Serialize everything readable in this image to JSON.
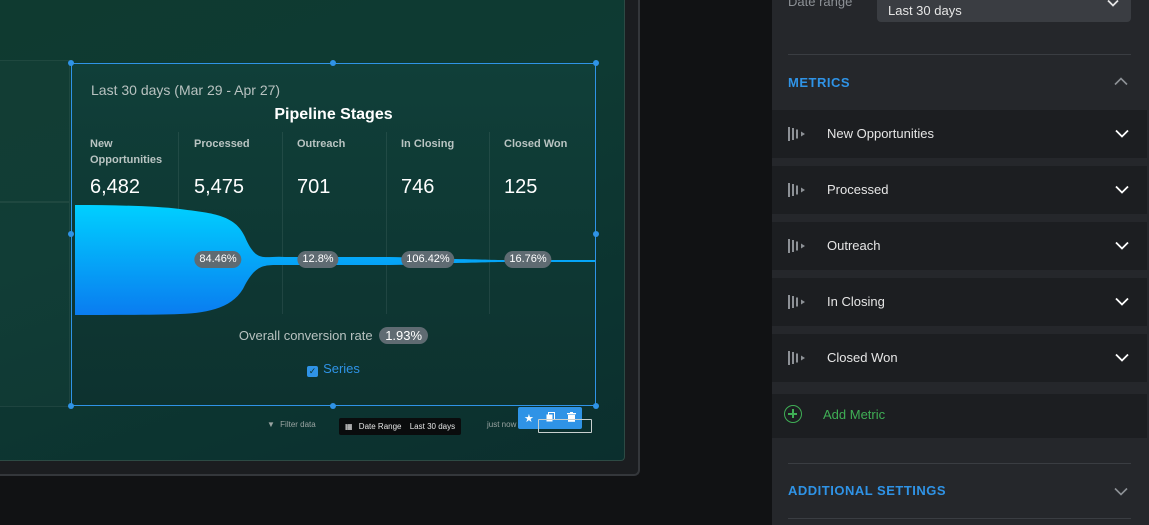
{
  "widget": {
    "date_range_text": "Last 30 days (Mar 29 - Apr 27)",
    "title": "Pipeline Stages",
    "stages": [
      {
        "name_line1": "New",
        "name_line2": "Opportunities",
        "value": "6,482"
      },
      {
        "name_line1": "Processed",
        "name_line2": "",
        "value": "5,475"
      },
      {
        "name_line1": "Outreach",
        "name_line2": "",
        "value": "701"
      },
      {
        "name_line1": "In Closing",
        "name_line2": "",
        "value": "746"
      },
      {
        "name_line1": "Closed Won",
        "name_line2": "",
        "value": "125"
      }
    ],
    "conversion_pcts": [
      "84.46%",
      "12.8%",
      "106.42%",
      "16.76%"
    ],
    "overall_label": "Overall conversion rate",
    "overall_value": "1.93%",
    "series_label": "Series",
    "series_checked": true,
    "funnel_color_top": "#00d0ff",
    "funnel_color_bottom": "#0a7cf0"
  },
  "footer": {
    "filter_label": "Filter data",
    "date_chip_label": "Date Range",
    "date_chip_value": "Last 30 days",
    "updated_label": "just now"
  },
  "panel": {
    "date_range_label": "Date range",
    "date_range_value": "Last 30 days",
    "metrics_title": "METRICS",
    "metrics": [
      "New Opportunities",
      "Processed",
      "Outreach",
      "In Closing",
      "Closed Won"
    ],
    "add_metric_label": "Add Metric",
    "additional_settings_title": "ADDITIONAL SETTINGS",
    "accent_color": "#2f93e6",
    "add_color": "#3fae55"
  },
  "icons": {
    "toolbar": [
      "star-icon",
      "copy-icon",
      "trash-icon"
    ],
    "metric": "metric-bars-icon",
    "chevron": "chevron-down-icon"
  }
}
